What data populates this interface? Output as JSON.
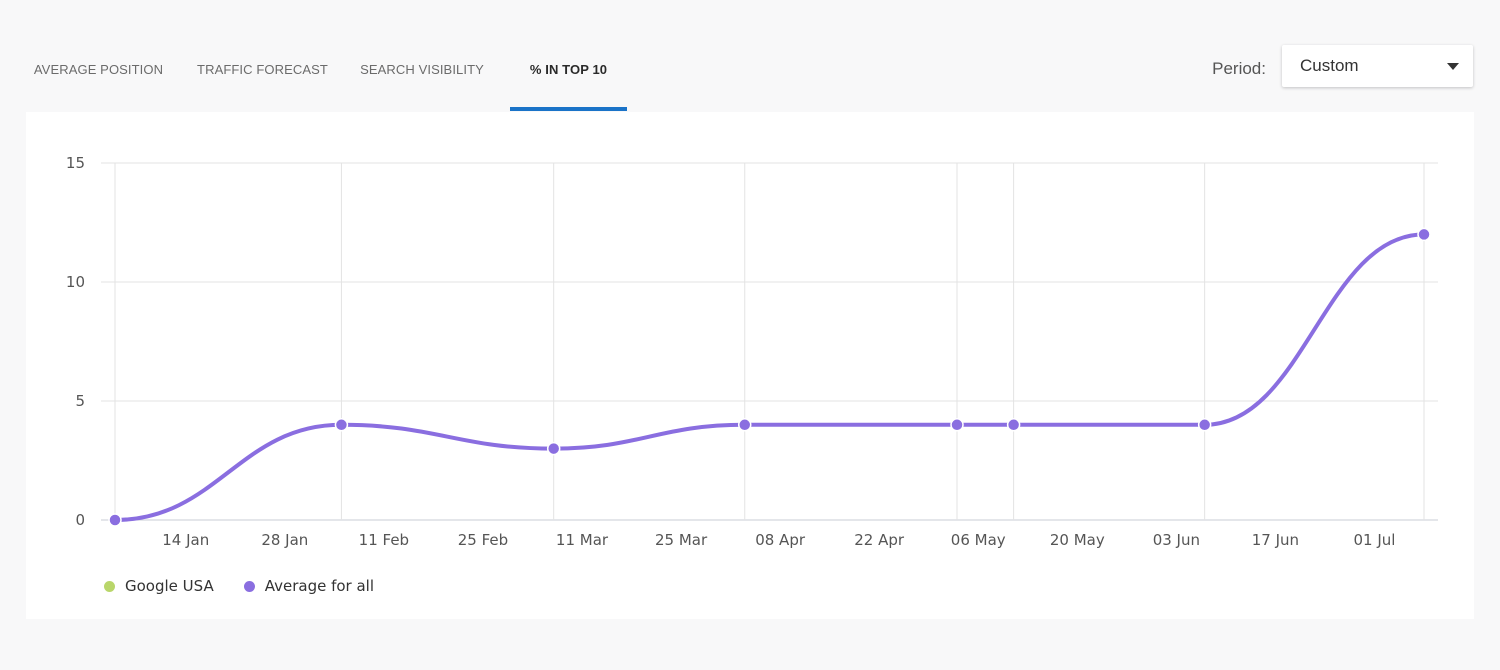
{
  "tabs": [
    {
      "label": "AVERAGE POSITION",
      "active": false
    },
    {
      "label": "TRAFFIC FORECAST",
      "active": false
    },
    {
      "label": "SEARCH VISIBILITY",
      "active": false
    },
    {
      "label": "% IN TOP 10",
      "active": true
    }
  ],
  "period": {
    "label": "Period:",
    "value": "Custom"
  },
  "colors": {
    "accent": "#1a73c8",
    "series_primary": "#8a6ee0",
    "series_secondary": "#b9d66a"
  },
  "chart_data": {
    "type": "line",
    "title": "",
    "xlabel": "",
    "ylabel": "",
    "ylim": [
      0,
      15
    ],
    "xlim": [
      "2019-01-03",
      "2019-07-06"
    ],
    "yticks": [
      "0",
      "5",
      "10",
      "15"
    ],
    "xticks": [
      "14 Jan",
      "28 Jan",
      "11 Feb",
      "25 Feb",
      "11 Mar",
      "25 Mar",
      "08 Apr",
      "22 Apr",
      "06 May",
      "20 May",
      "03 Jun",
      "17 Jun",
      "01 Jul"
    ],
    "grid": true,
    "legend": "bottom-left",
    "series": [
      {
        "name": "Google USA",
        "color": "#b9d66a",
        "points": []
      },
      {
        "name": "Average for all",
        "color": "#8a6ee0",
        "points": [
          {
            "x": "2019-01-04",
            "y": 0
          },
          {
            "x": "2019-02-05",
            "y": 4
          },
          {
            "x": "2019-03-07",
            "y": 3
          },
          {
            "x": "2019-04-03",
            "y": 4
          },
          {
            "x": "2019-05-03",
            "y": 4
          },
          {
            "x": "2019-05-11",
            "y": 4
          },
          {
            "x": "2019-06-07",
            "y": 4
          },
          {
            "x": "2019-07-08",
            "y": 12
          }
        ]
      }
    ]
  }
}
